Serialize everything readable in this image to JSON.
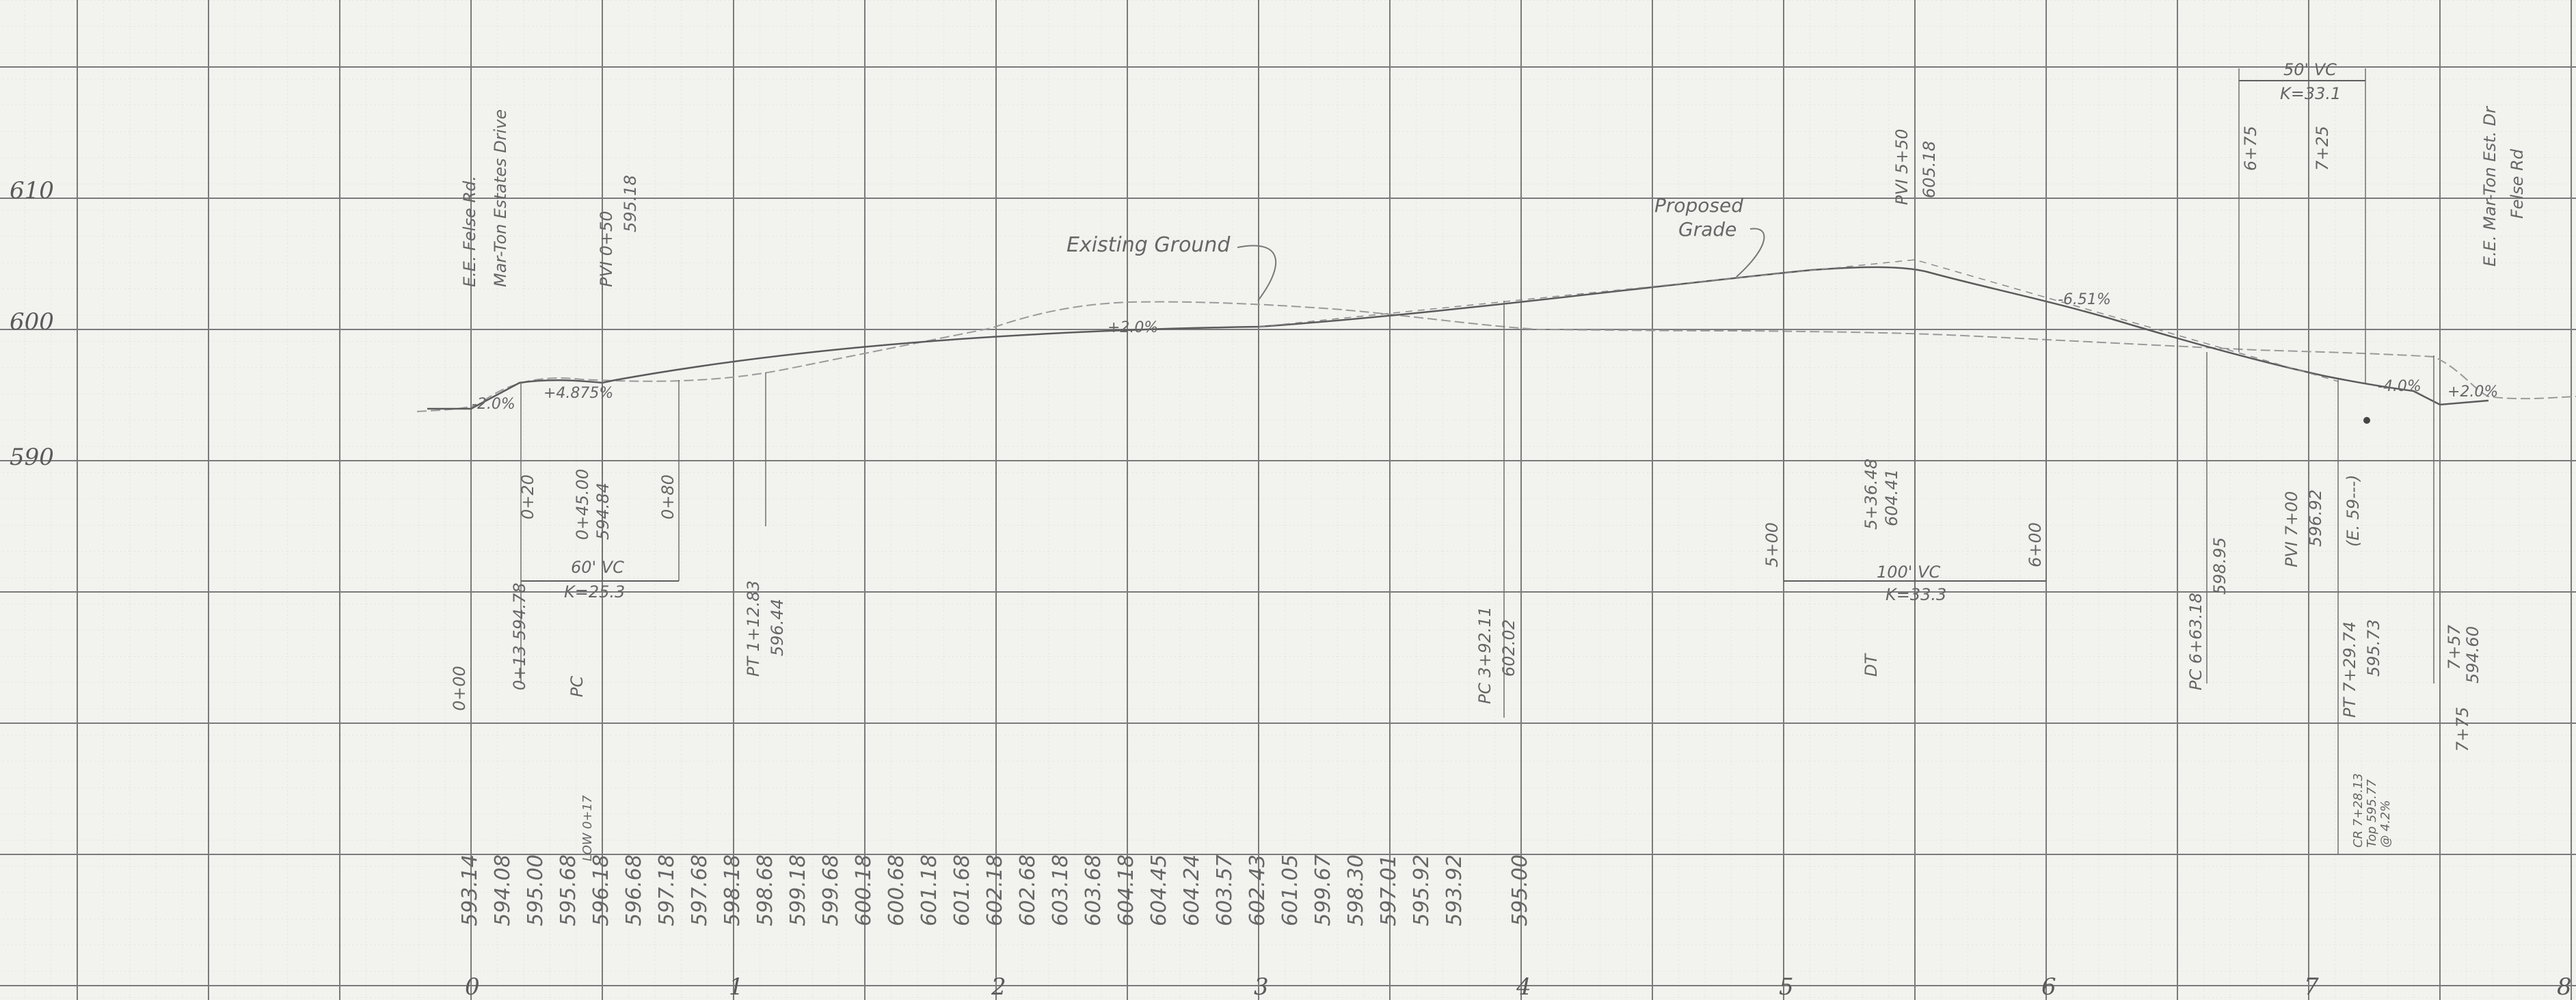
{
  "elevation_axis": [
    "610",
    "600",
    "590"
  ],
  "station_axis": [
    "0",
    "1",
    "2",
    "3",
    "4",
    "5",
    "6",
    "7",
    "8"
  ],
  "finished_grade_elevations": [
    {
      "sta": 0.0,
      "text": "593.14"
    },
    {
      "sta": 0.5,
      "text": "594.08"
    },
    {
      "sta": 1.0,
      "text": "595.00"
    },
    {
      "sta": 1.5,
      "text": "595.68"
    },
    {
      "sta": 2.0,
      "text": "596.18"
    },
    {
      "sta": 2.5,
      "text": "596.68"
    },
    {
      "sta": 3.0,
      "text": "597.18"
    },
    {
      "sta": 3.5,
      "text": "597.68"
    },
    {
      "sta": 4.0,
      "text": "598.18"
    },
    {
      "sta": 4.5,
      "text": "598.68"
    },
    {
      "sta": 5.0,
      "text": "599.18"
    },
    {
      "sta": 5.5,
      "text": "599.68"
    },
    {
      "sta": 6.0,
      "text": "600.18"
    },
    {
      "sta": 6.5,
      "text": "600.68"
    },
    {
      "sta": 7.0,
      "text": "601.18"
    },
    {
      "sta": 7.5,
      "text": "601.68"
    },
    {
      "sta": 8.0,
      "text": "602.18"
    },
    {
      "sta": 8.5,
      "text": "602.68"
    },
    {
      "sta": 9.0,
      "text": "603.18"
    },
    {
      "sta": 9.5,
      "text": "603.68"
    },
    {
      "sta": 10.0,
      "text": "604.18"
    },
    {
      "sta": 10.5,
      "text": "604.45"
    },
    {
      "sta": 11.0,
      "text": "604.24"
    },
    {
      "sta": 11.5,
      "text": "603.57"
    },
    {
      "sta": 12.0,
      "text": "602.43"
    },
    {
      "sta": 12.5,
      "text": "601.05"
    },
    {
      "sta": 13.0,
      "text": "599.67"
    },
    {
      "sta": 13.5,
      "text": "598.30"
    },
    {
      "sta": 14.0,
      "text": "597.01"
    },
    {
      "sta": 14.5,
      "text": "595.92"
    },
    {
      "sta": 15.0,
      "text": "593.92"
    },
    {
      "sta": 16.0,
      "text": "595.00"
    }
  ],
  "labels": {
    "existing_ground": "Existing Ground",
    "proposed_grade_1": "Proposed",
    "proposed_grade_2": "Grade",
    "left_end_1": "E.E. Felse Rd.",
    "left_end_2": "Mar-Ton Estates Drive",
    "right_end_1": "E.E. Mar-Ton Est. Dr",
    "right_end_2": "Felse Rd",
    "pvi_left": "PVI 0+50",
    "pvi_left_elev": "595.18",
    "pvi_mid": "PVI 5+50",
    "pvi_mid_elev": "605.18",
    "pvi_right": "PVI 7+00",
    "pvi_right_elev": "596.92",
    "grade_neg2": "-2.0%",
    "grade_left": "+4.875%",
    "grade_plus2": "+2.0%",
    "grade_neg651": "-6.51%",
    "grade_neg4": "-4.0%",
    "grade_plus2_right": "+2.0%",
    "vc_left": "60' VC",
    "k_left": "K=25.3",
    "vc_mid": "100' VC",
    "k_mid": "K=33.3",
    "vc_right": "50' VC",
    "k_right": "K=33.1",
    "sta_0_00": "0+00",
    "sta_0_13": "0+13  594.78",
    "sta_0_20": "0+20",
    "sta_0_45": "0+45.00",
    "sta_0_45_elev": "594.84",
    "sta_0_80": "0+80",
    "pc_left": "PC",
    "pt_left": "PT 1+12.83",
    "pt_left_elev": "596.44",
    "pc_mid": "PC 3+92.11",
    "pc_mid_elev": "602.02",
    "sta_5_00": "5+00",
    "sta_5_36": "5+36.48",
    "sta_5_36_elev": "604.41",
    "dt_mid": "DT",
    "sta_6_00": "6+00",
    "pc_right": "PC 6+63.18",
    "pc_right_elev": "598.95",
    "sta_6_75": "6+75",
    "sta_7_25": "7+25",
    "pt_right": "PT 7+29.74",
    "pt_right_elev": "595.73",
    "sta_7_57": "7+57",
    "sta_7_57_elev": "594.60",
    "sta_7_75": "7+75",
    "cl_elev": "(E. 59---)",
    "low_left": "LOW 0+17",
    "low_right": "CR 7+28.13",
    "low_right_2": "Top 595.77",
    "low_right_3": "@ 4.2%"
  },
  "colors": {
    "paper": "#f2f2ef",
    "grid_major": "#7d7d7d",
    "grid_minor": "#c9c9c5",
    "pencil": "#5a5a5a"
  }
}
